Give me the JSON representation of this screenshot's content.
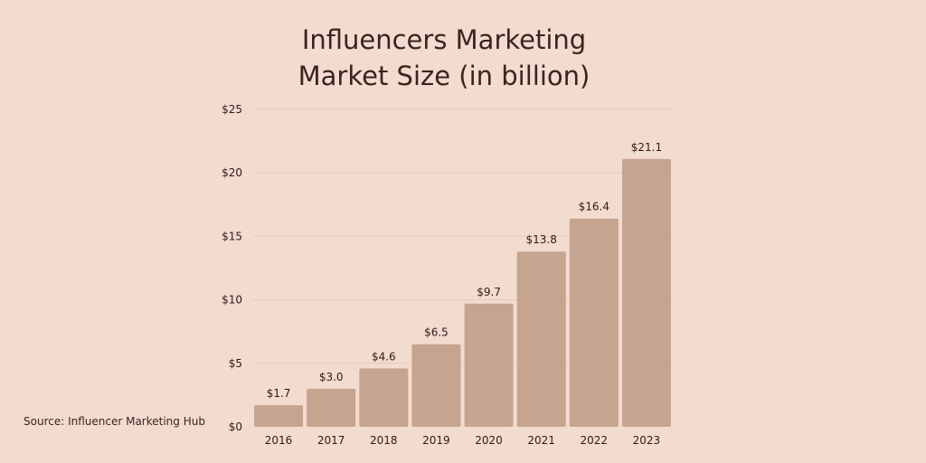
{
  "title_lines": [
    "Influencers Marketing",
    "Market Size (in billion)"
  ],
  "source": "Source: Influencer Marketing Hub",
  "colors": {
    "background": "#f2dbcf",
    "bar": "#c5a490",
    "text": "#3a2420",
    "grid": "#e6cdbf"
  },
  "chart_data": {
    "type": "bar",
    "title": "Influencers Marketing Market Size (in billion)",
    "categories": [
      "2016",
      "2017",
      "2018",
      "2019",
      "2020",
      "2021",
      "2022",
      "2023"
    ],
    "values": [
      1.7,
      3.0,
      4.6,
      6.5,
      9.7,
      13.8,
      16.4,
      21.1
    ],
    "value_labels": [
      "$1.7",
      "$3.0",
      "$4.6",
      "$6.5",
      "$9.7",
      "$13.8",
      "$16.4",
      "$21.1"
    ],
    "y_ticks": [
      0,
      5,
      10,
      15,
      20,
      25
    ],
    "y_tick_labels": [
      "$0",
      "$5",
      "$10",
      "$15",
      "$20",
      "$25"
    ],
    "ylim": [
      0,
      25
    ],
    "xlabel": "",
    "ylabel": "",
    "grid": true,
    "legend": "none"
  }
}
